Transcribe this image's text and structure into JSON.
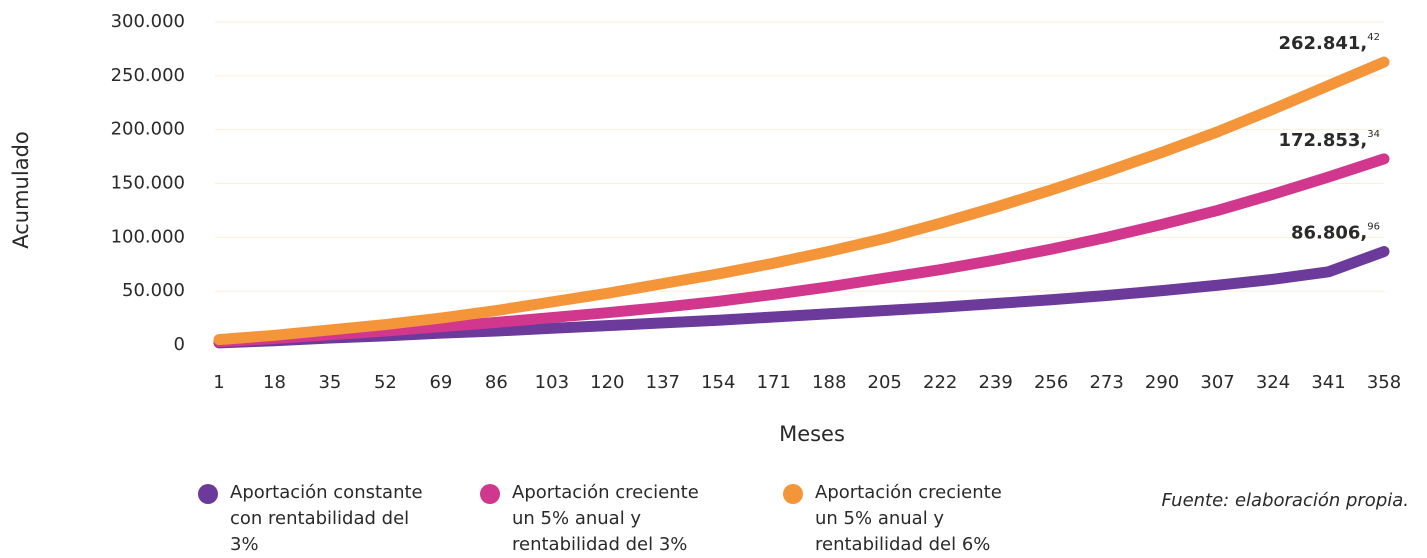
{
  "chart_data": {
    "type": "line",
    "x_label": "Meses",
    "y_label": "Acumulado",
    "source": "Fuente: elaboración propia.",
    "x": [
      1,
      18,
      35,
      52,
      69,
      86,
      103,
      120,
      137,
      154,
      171,
      188,
      205,
      222,
      239,
      256,
      273,
      290,
      307,
      324,
      341,
      358
    ],
    "xlim": [
      1,
      358
    ],
    "xticks": [
      1,
      18,
      35,
      52,
      69,
      86,
      103,
      120,
      137,
      154,
      171,
      188,
      205,
      222,
      239,
      256,
      273,
      290,
      307,
      324,
      341,
      358
    ],
    "ylim": [
      0,
      300000
    ],
    "yticks": [
      0,
      {
        "value": 50000,
        "label": "50.000"
      },
      {
        "value": 100000,
        "label": "100.000"
      },
      {
        "value": 150000,
        "label": "150.000"
      },
      {
        "value": 200000,
        "label": "200.000"
      },
      {
        "value": 250000,
        "label": "250.000"
      },
      {
        "value": 300000,
        "label": "300.000"
      }
    ],
    "grid": true,
    "series": [
      {
        "name": "Aportación constante con rentabilidad del 3%",
        "color": "#6b3a9b",
        "values": [
          2000,
          4000,
          6500,
          8500,
          11000,
          13000,
          15500,
          18000,
          20500,
          23000,
          26000,
          29000,
          32000,
          35000,
          38500,
          42000,
          46000,
          50500,
          55500,
          61000,
          68000,
          86806.96
        ],
        "value_labels": [
          null,
          null,
          null,
          null,
          null,
          null,
          null,
          null,
          null,
          null,
          null,
          null,
          null,
          null,
          null,
          null,
          null,
          null,
          null,
          null,
          null,
          "86.806,96"
        ]
      },
      {
        "name": "Aportación creciente un 5% anual y rentabilidad del 3%",
        "color": "#d2378e",
        "values": [
          3000,
          6000,
          9500,
          13000,
          17000,
          21000,
          25500,
          30000,
          35000,
          40500,
          47000,
          54000,
          62000,
          70000,
          79000,
          89000,
          100000,
          112000,
          125000,
          140000,
          156000,
          172853.34
        ],
        "value_labels": [
          null,
          null,
          null,
          null,
          null,
          null,
          null,
          null,
          null,
          null,
          null,
          null,
          null,
          null,
          null,
          null,
          null,
          null,
          null,
          null,
          null,
          "172.853,34"
        ]
      },
      {
        "name": "Aportación creciente un 5% anual y rentabilidad del 6%",
        "color": "#f5953a",
        "values": [
          5000,
          9000,
          14000,
          19000,
          25000,
          32000,
          40000,
          48000,
          57000,
          66000,
          76000,
          87000,
          99000,
          113000,
          128000,
          144000,
          161000,
          179000,
          198000,
          219000,
          241000,
          262841.42
        ],
        "value_labels": [
          null,
          null,
          null,
          null,
          null,
          null,
          null,
          null,
          null,
          null,
          null,
          null,
          null,
          null,
          null,
          null,
          null,
          null,
          null,
          null,
          null,
          "262.841,42"
        ]
      }
    ]
  }
}
